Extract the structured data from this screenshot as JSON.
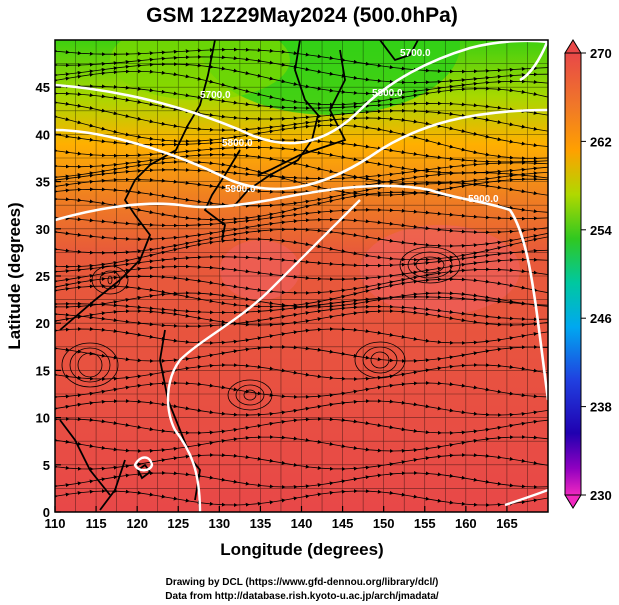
{
  "title": "GSM 12Z29May2024 (500.0hPa)",
  "x_axis": {
    "label": "Longitude (degrees)",
    "ticks": [
      "110",
      "115",
      "120",
      "125",
      "130",
      "135",
      "140",
      "145",
      "150",
      "155",
      "160",
      "165"
    ]
  },
  "y_axis": {
    "label": "Latitude  (degrees)",
    "ticks": [
      "0",
      "5",
      "10",
      "15",
      "20",
      "25",
      "30",
      "35",
      "40",
      "45"
    ]
  },
  "colorbar": {
    "ticks": [
      "230",
      "238",
      "246",
      "254",
      "262",
      "270"
    ]
  },
  "contour_labels": [
    "5700.0",
    "5800.0",
    "5900.0",
    "5900.0",
    "5800.0",
    "5700.0"
  ],
  "credits": {
    "line1": "Drawing by DCL (https://www.gfd-dennou.org/library/dcl/)",
    "line2": "Data from http://database.rish.kyoto-u.ac.jp/arch/jmadata/"
  },
  "colors": {
    "cold": "#22c000",
    "mid": "#ffa000",
    "warm": "#e84848",
    "contour": "#ffffff",
    "coast": "#000000"
  }
}
